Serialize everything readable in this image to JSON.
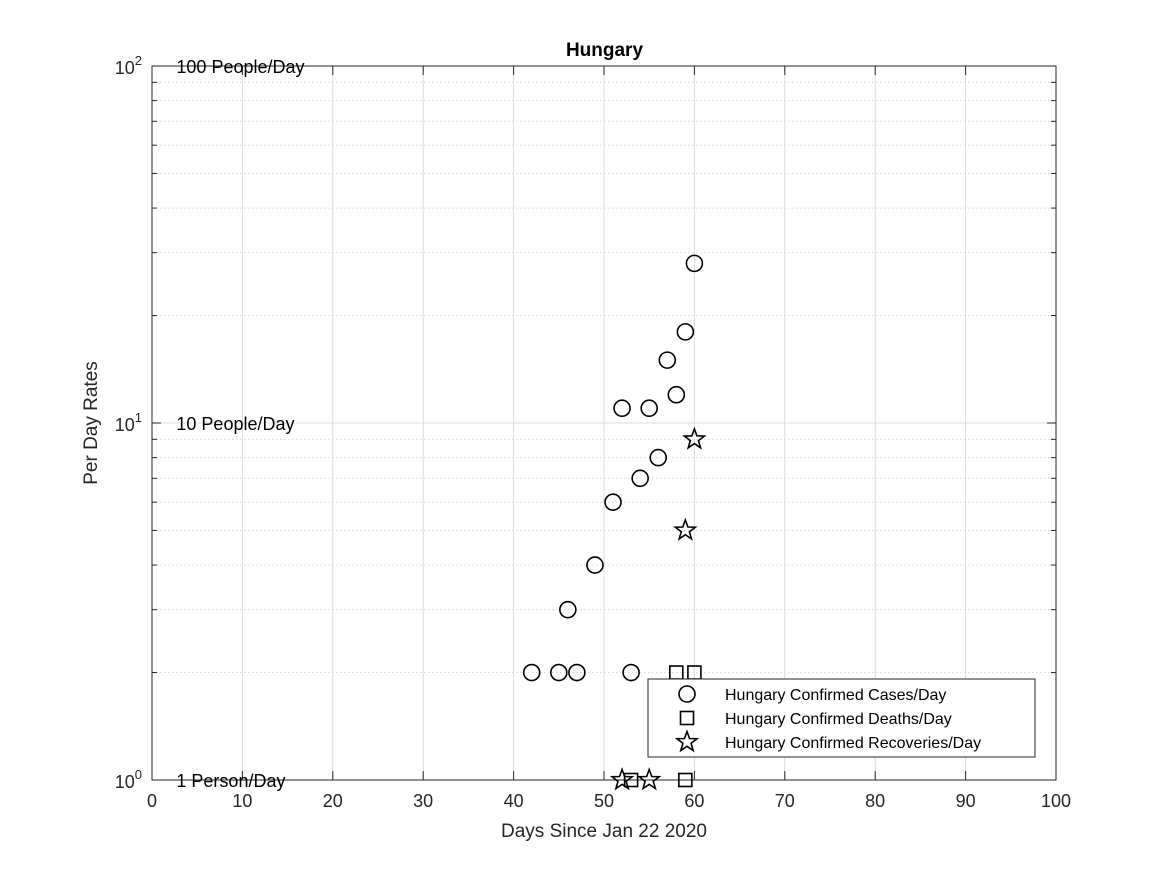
{
  "chart_data": {
    "type": "scatter",
    "title": "Hungary",
    "xlabel": "Days Since Jan 22 2020",
    "ylabel": "Per Day Rates",
    "xlim": [
      0,
      100
    ],
    "ylim": [
      1,
      100
    ],
    "yscale": "log",
    "grid": true,
    "legend_position": "bottom-right",
    "x_ticks": [
      "0",
      "10",
      "20",
      "30",
      "40",
      "50",
      "60",
      "70",
      "80",
      "90",
      "100"
    ],
    "y_ticks": [
      {
        "value": 1,
        "base": "10",
        "exp": "0"
      },
      {
        "value": 10,
        "base": "10",
        "exp": "1"
      },
      {
        "value": 100,
        "base": "10",
        "exp": "2"
      }
    ],
    "annotations": [
      {
        "text": "1 Person/Day",
        "x": 2.7,
        "y": 1
      },
      {
        "text": "10 People/Day",
        "x": 2.7,
        "y": 10
      },
      {
        "text": "100 People/Day",
        "x": 2.7,
        "y": 100
      }
    ],
    "series": [
      {
        "name": "Hungary Confirmed Cases/Day",
        "marker": "circle",
        "points": [
          {
            "x": 42,
            "y": 2
          },
          {
            "x": 45,
            "y": 2
          },
          {
            "x": 46,
            "y": 3
          },
          {
            "x": 47,
            "y": 2
          },
          {
            "x": 49,
            "y": 4
          },
          {
            "x": 51,
            "y": 6
          },
          {
            "x": 52,
            "y": 11
          },
          {
            "x": 53,
            "y": 2
          },
          {
            "x": 54,
            "y": 7
          },
          {
            "x": 55,
            "y": 11
          },
          {
            "x": 56,
            "y": 8
          },
          {
            "x": 57,
            "y": 15
          },
          {
            "x": 58,
            "y": 12
          },
          {
            "x": 59,
            "y": 18
          },
          {
            "x": 60,
            "y": 28
          }
        ]
      },
      {
        "name": "Hungary Confirmed Deaths/Day",
        "marker": "square",
        "points": [
          {
            "x": 53,
            "y": 1
          },
          {
            "x": 58,
            "y": 2
          },
          {
            "x": 59,
            "y": 1
          },
          {
            "x": 60,
            "y": 2
          }
        ]
      },
      {
        "name": "Hungary Confirmed Recoveries/Day",
        "marker": "star",
        "points": [
          {
            "x": 52,
            "y": 1
          },
          {
            "x": 55,
            "y": 1
          },
          {
            "x": 59,
            "y": 5
          },
          {
            "x": 60,
            "y": 9
          }
        ]
      }
    ],
    "colors": {
      "axis": "#262626",
      "grid": "#dcdcdc",
      "marker": "#000000",
      "background": "#ffffff"
    }
  }
}
